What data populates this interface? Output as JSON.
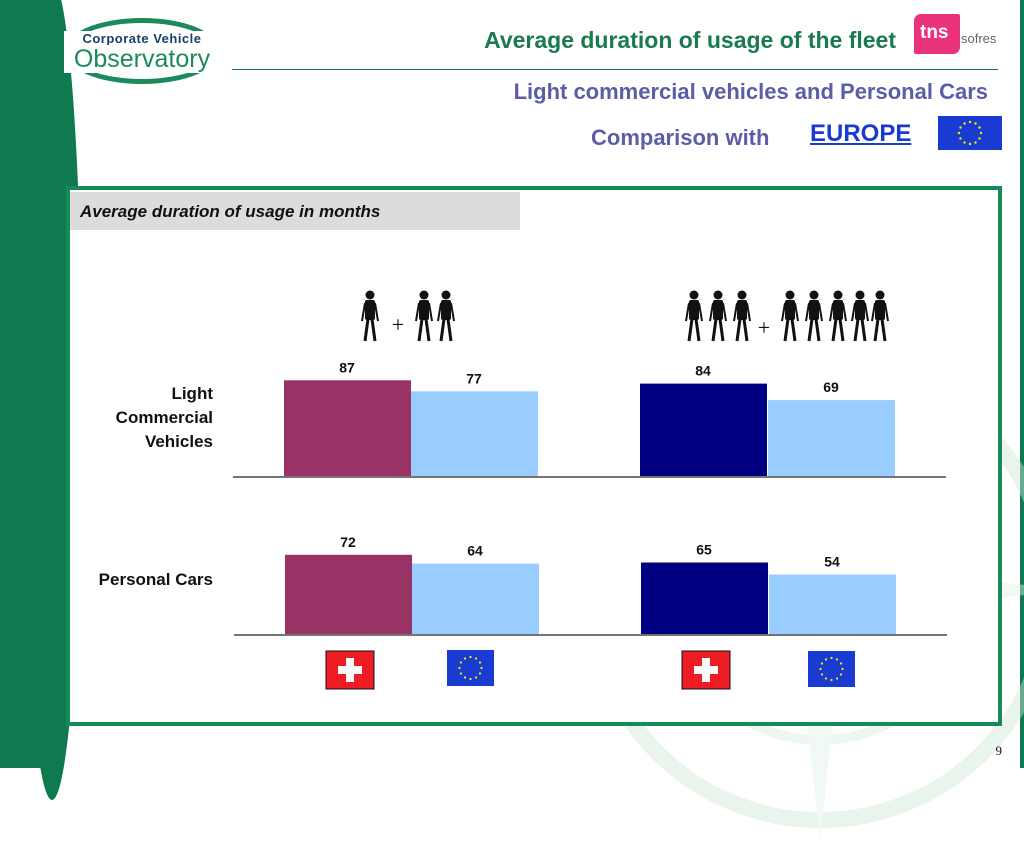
{
  "header": {
    "logo_line1": "Corporate Vehicle",
    "logo_line2": "Observatory",
    "title": "Average duration of usage of the fleet",
    "subtitle": "Light commercial vehicles and Personal Cars",
    "comparison_label": "Comparison with",
    "comparison_link": "EUROPE",
    "brand_tns": "tns",
    "brand_sofres": "sofres"
  },
  "panel": {
    "heading": "Average duration of usage in months"
  },
  "colors": {
    "green": "#1a7a50",
    "purple_text": "#5b5ea6",
    "swiss_small": "#993366",
    "swiss_large": "#000080",
    "europe": "#99ccff",
    "tns_pink": "#e8327a"
  },
  "icons": {
    "small_fleet": "person-icons-1-plus-2",
    "large_fleet": "person-icons-3-plus-5",
    "swiss_flag": "swiss-flag-icon",
    "eu_flag": "eu-flag-icon"
  },
  "chart_data": {
    "type": "bar",
    "title": "Average duration of usage in months",
    "categories": [
      "Light Commercial Vehicles",
      "Personal Cars"
    ],
    "panels": [
      {
        "fleet_size": "1 + 2 persons",
        "series": [
          {
            "name": "Switzerland",
            "color": "#993366",
            "values": [
              87,
              72
            ]
          },
          {
            "name": "Europe",
            "color": "#99ccff",
            "values": [
              77,
              64
            ]
          }
        ]
      },
      {
        "fleet_size": "3 + 5 persons",
        "series": [
          {
            "name": "Switzerland",
            "color": "#000080",
            "values": [
              84,
              65
            ]
          },
          {
            "name": "Europe",
            "color": "#99ccff",
            "values": [
              69,
              54
            ]
          }
        ]
      }
    ],
    "value_labels": [
      "87",
      "77",
      "84",
      "69",
      "72",
      "64",
      "65",
      "54"
    ],
    "plus_sign": "+",
    "row_labels": [
      "Light Commercial Vehicles",
      "Personal Cars"
    ],
    "row_label_lines": [
      [
        "Light",
        "Commercial",
        "Vehicles"
      ],
      [
        "Personal Cars"
      ]
    ]
  },
  "footer": {
    "page_number": "9"
  }
}
